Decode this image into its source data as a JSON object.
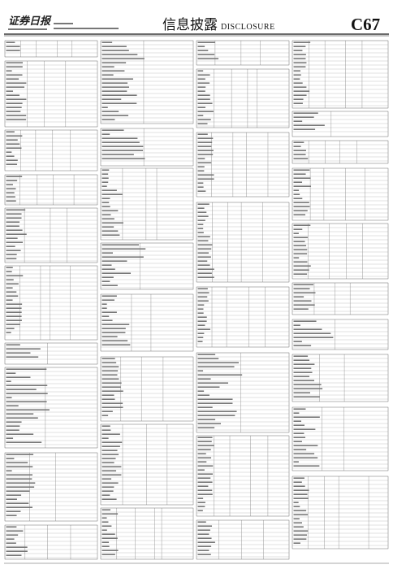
{
  "header": {
    "masthead": "证券日报",
    "section_title": "信息披露",
    "section_subtitle": "DISCLOSURE",
    "page_number": "C67"
  }
}
